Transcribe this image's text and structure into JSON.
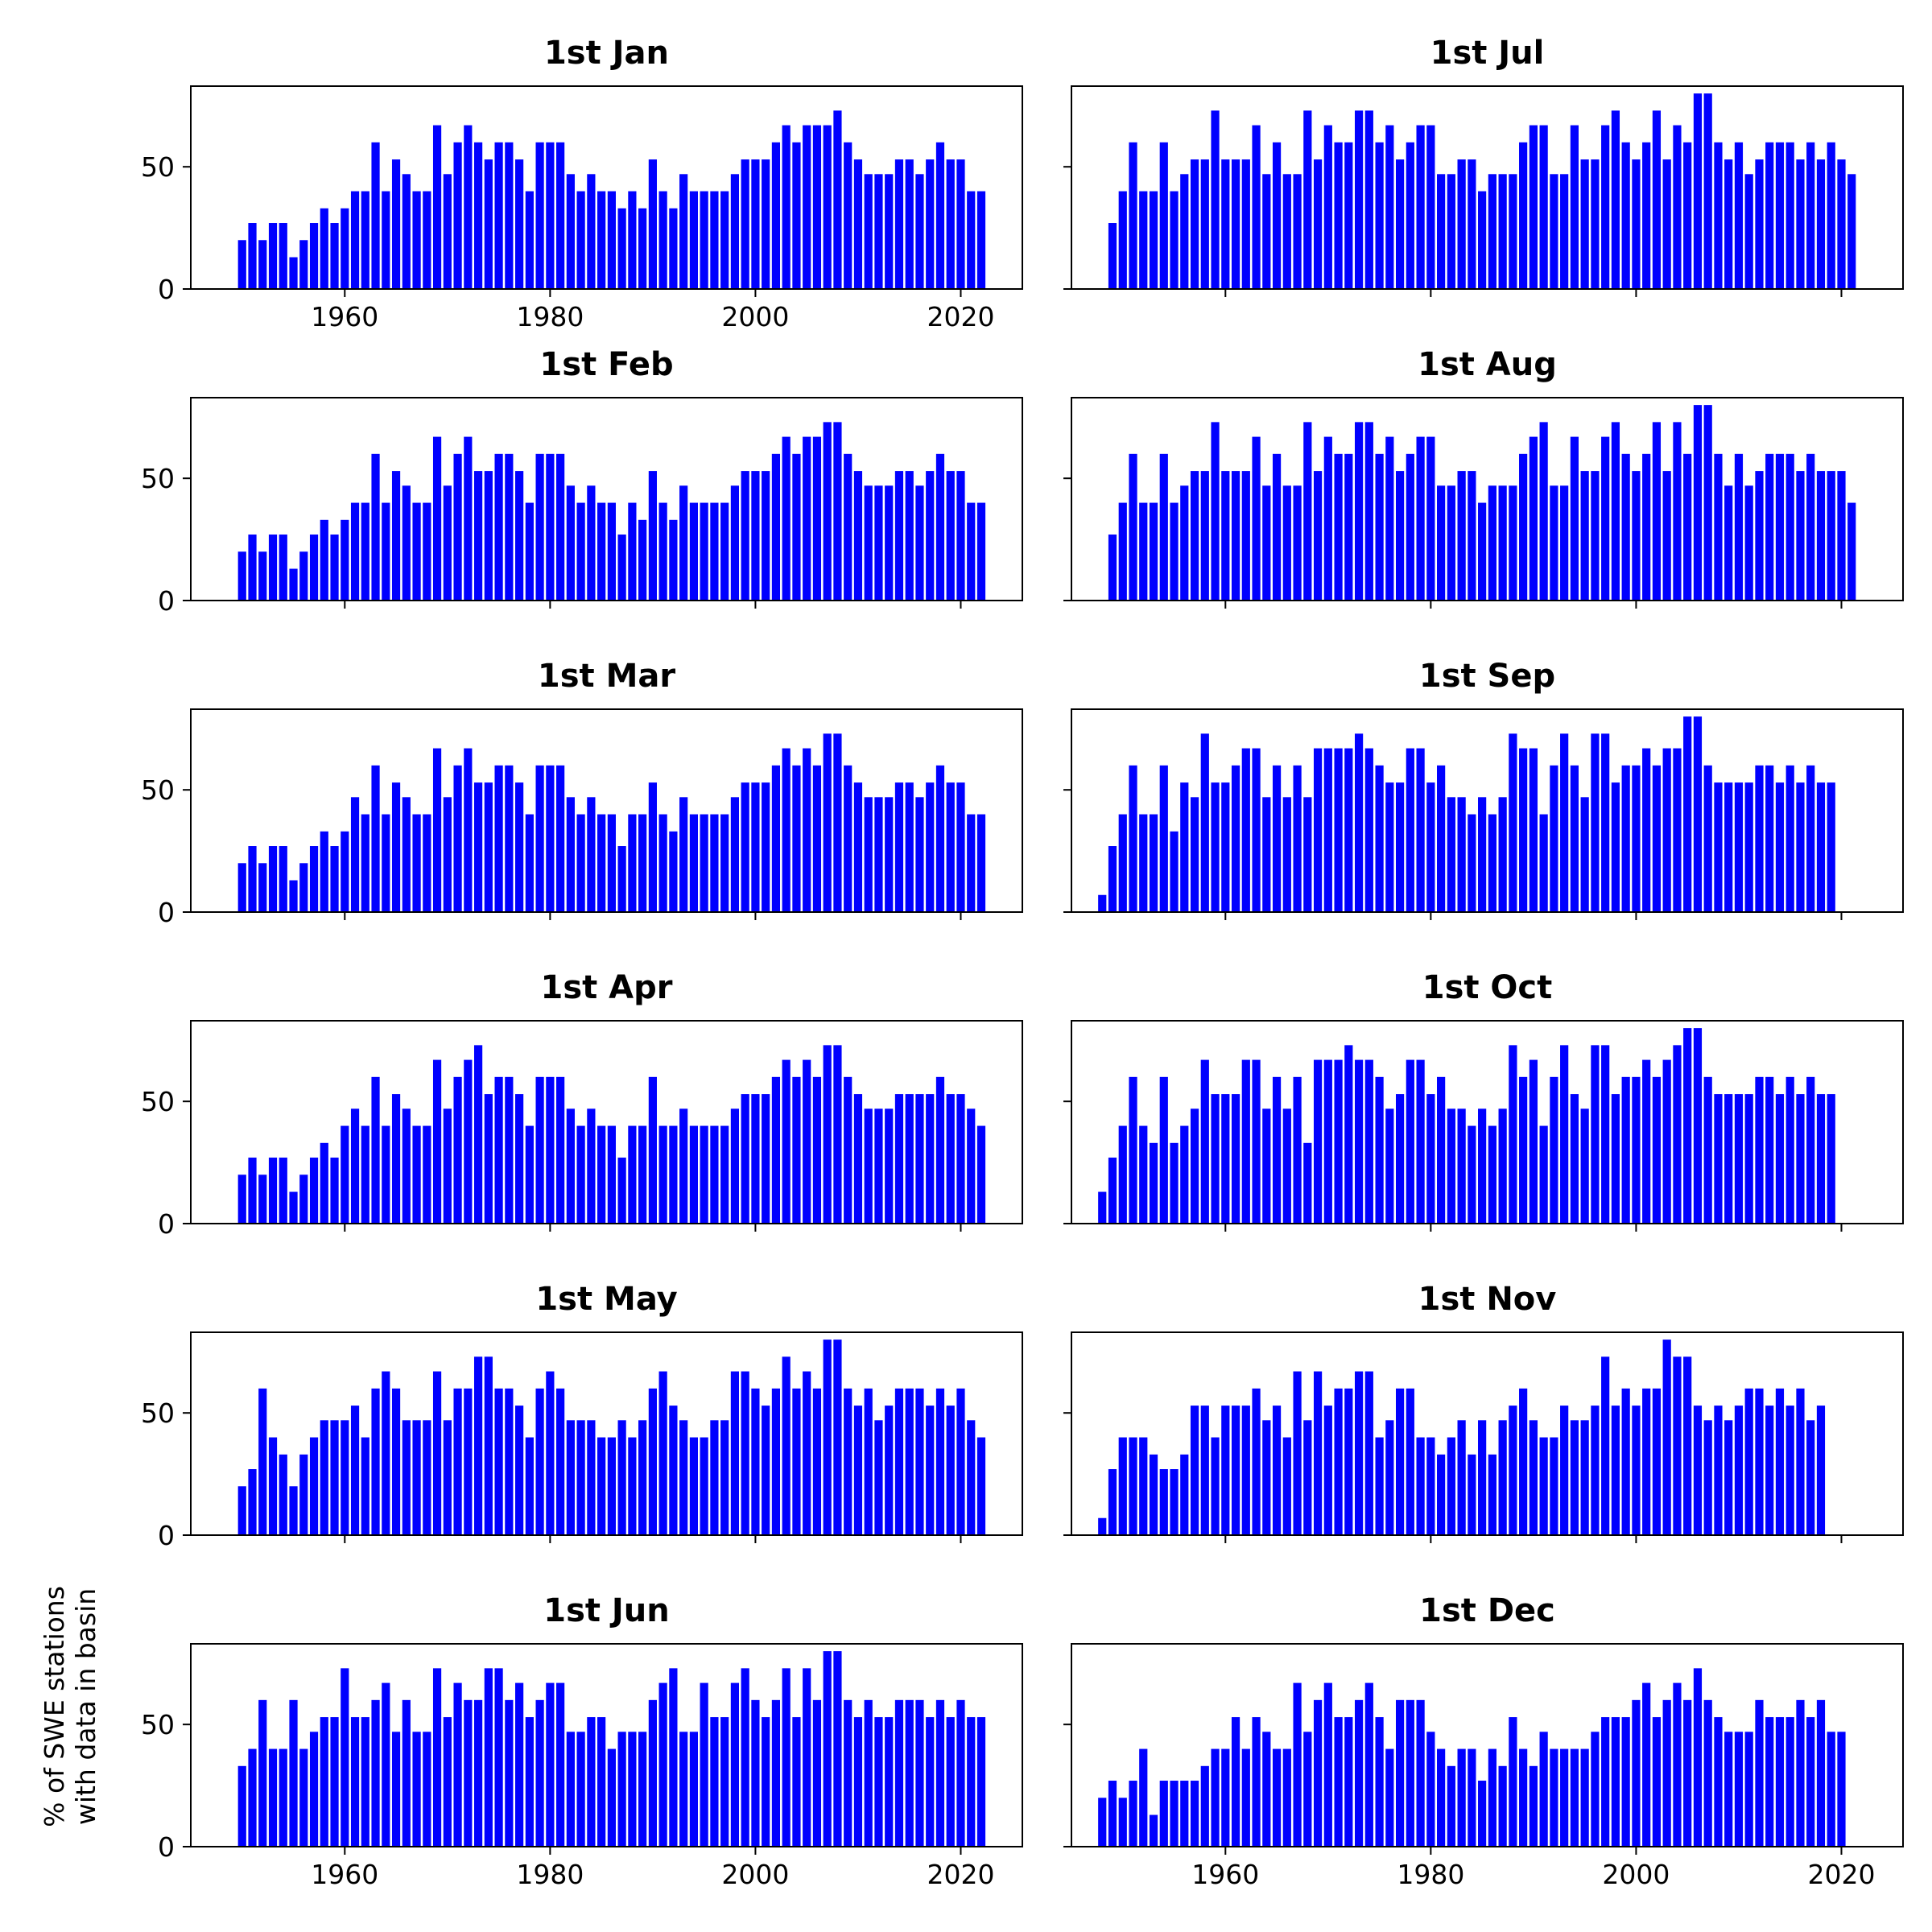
{
  "figure": {
    "ylabel_line1": "% of SWE stations",
    "ylabel_line2": "with data in basin"
  },
  "chart_data": [
    {
      "type": "bar",
      "title": "1st Jan",
      "x_start": 1950,
      "values": [
        20,
        27,
        20,
        27,
        27,
        13,
        20,
        27,
        33,
        27,
        33,
        40,
        40,
        60,
        40,
        53,
        47,
        40,
        40,
        67,
        47,
        60,
        67,
        60,
        53,
        60,
        60,
        53,
        40,
        60,
        60,
        60,
        47,
        40,
        47,
        40,
        40,
        33,
        40,
        33,
        53,
        40,
        33,
        47,
        40,
        40,
        40,
        40,
        47,
        53,
        53,
        53,
        60,
        67,
        60,
        67,
        67,
        67,
        73,
        60,
        53,
        47,
        47,
        47,
        53,
        53,
        47,
        53,
        60,
        53,
        53,
        40,
        40
      ],
      "ylim": [
        0,
        83
      ],
      "yticks": [
        "0",
        "50"
      ],
      "xlim": [
        1945,
        2026
      ],
      "xticks": [
        "1960",
        "1980",
        "2000",
        "2020"
      ],
      "color": "#0000ff"
    },
    {
      "type": "bar",
      "title": "1st Jul",
      "x_start": 1949,
      "values": [
        27,
        40,
        60,
        40,
        40,
        60,
        40,
        47,
        53,
        53,
        73,
        53,
        53,
        53,
        67,
        47,
        60,
        47,
        47,
        73,
        53,
        67,
        60,
        60,
        73,
        73,
        60,
        67,
        53,
        60,
        67,
        67,
        47,
        47,
        53,
        53,
        40,
        47,
        47,
        47,
        60,
        67,
        67,
        47,
        47,
        67,
        53,
        53,
        67,
        73,
        60,
        53,
        60,
        73,
        53,
        67,
        60,
        80,
        80,
        60,
        53,
        60,
        47,
        53,
        60,
        60,
        60,
        53,
        60,
        53,
        60,
        53,
        47
      ],
      "ylim": [
        0,
        83
      ],
      "yticks": [
        "",
        ""
      ],
      "xlim": [
        1945,
        2026
      ],
      "xticks": [
        "",
        "",
        "",
        ""
      ],
      "color": "#0000ff"
    },
    {
      "type": "bar",
      "title": "1st Feb",
      "x_start": 1950,
      "values": [
        20,
        27,
        20,
        27,
        27,
        13,
        20,
        27,
        33,
        27,
        33,
        40,
        40,
        60,
        40,
        53,
        47,
        40,
        40,
        67,
        47,
        60,
        67,
        53,
        53,
        60,
        60,
        53,
        40,
        60,
        60,
        60,
        47,
        40,
        47,
        40,
        40,
        27,
        40,
        33,
        53,
        40,
        33,
        47,
        40,
        40,
        40,
        40,
        47,
        53,
        53,
        53,
        60,
        67,
        60,
        67,
        67,
        73,
        73,
        60,
        53,
        47,
        47,
        47,
        53,
        53,
        47,
        53,
        60,
        53,
        53,
        40,
        40
      ],
      "ylim": [
        0,
        83
      ],
      "yticks": [
        "0",
        "50"
      ],
      "xlim": [
        1945,
        2026
      ],
      "xticks": [
        "",
        "",
        "",
        ""
      ],
      "color": "#0000ff"
    },
    {
      "type": "bar",
      "title": "1st Aug",
      "x_start": 1949,
      "values": [
        27,
        40,
        60,
        40,
        40,
        60,
        40,
        47,
        53,
        53,
        73,
        53,
        53,
        53,
        67,
        47,
        60,
        47,
        47,
        73,
        53,
        67,
        60,
        60,
        73,
        73,
        60,
        67,
        53,
        60,
        67,
        67,
        47,
        47,
        53,
        53,
        40,
        47,
        47,
        47,
        60,
        67,
        73,
        47,
        47,
        67,
        53,
        53,
        67,
        73,
        60,
        53,
        60,
        73,
        53,
        73,
        60,
        80,
        80,
        60,
        47,
        60,
        47,
        53,
        60,
        60,
        60,
        53,
        60,
        53,
        53,
        53,
        40
      ],
      "ylim": [
        0,
        83
      ],
      "yticks": [
        "",
        ""
      ],
      "xlim": [
        1945,
        2026
      ],
      "xticks": [
        "",
        "",
        "",
        ""
      ],
      "color": "#0000ff"
    },
    {
      "type": "bar",
      "title": "1st Mar",
      "x_start": 1950,
      "values": [
        20,
        27,
        20,
        27,
        27,
        13,
        20,
        27,
        33,
        27,
        33,
        47,
        40,
        60,
        40,
        53,
        47,
        40,
        40,
        67,
        47,
        60,
        67,
        53,
        53,
        60,
        60,
        53,
        40,
        60,
        60,
        60,
        47,
        40,
        47,
        40,
        40,
        27,
        40,
        40,
        53,
        40,
        33,
        47,
        40,
        40,
        40,
        40,
        47,
        53,
        53,
        53,
        60,
        67,
        60,
        67,
        60,
        73,
        73,
        60,
        53,
        47,
        47,
        47,
        53,
        53,
        47,
        53,
        60,
        53,
        53,
        40,
        40
      ],
      "ylim": [
        0,
        83
      ],
      "yticks": [
        "0",
        "50"
      ],
      "xlim": [
        1945,
        2026
      ],
      "xticks": [
        "",
        "",
        "",
        ""
      ],
      "color": "#0000ff"
    },
    {
      "type": "bar",
      "title": "1st Sep",
      "x_start": 1948,
      "values": [
        7,
        27,
        40,
        60,
        40,
        40,
        60,
        33,
        53,
        47,
        73,
        53,
        53,
        60,
        67,
        67,
        47,
        60,
        47,
        60,
        47,
        67,
        67,
        67,
        67,
        73,
        67,
        60,
        53,
        53,
        67,
        67,
        53,
        60,
        47,
        47,
        40,
        47,
        40,
        47,
        73,
        67,
        67,
        40,
        60,
        73,
        60,
        47,
        73,
        73,
        53,
        60,
        60,
        67,
        60,
        67,
        67,
        80,
        80,
        60,
        53,
        53,
        53,
        53,
        60,
        60,
        53,
        60,
        53,
        60,
        53,
        53
      ],
      "ylim": [
        0,
        83
      ],
      "yticks": [
        "",
        ""
      ],
      "xlim": [
        1945,
        2026
      ],
      "xticks": [
        "",
        "",
        "",
        ""
      ],
      "color": "#0000ff"
    },
    {
      "type": "bar",
      "title": "1st Apr",
      "x_start": 1950,
      "values": [
        20,
        27,
        20,
        27,
        27,
        13,
        20,
        27,
        33,
        27,
        40,
        47,
        40,
        60,
        40,
        53,
        47,
        40,
        40,
        67,
        47,
        60,
        67,
        73,
        53,
        60,
        60,
        53,
        40,
        60,
        60,
        60,
        47,
        40,
        47,
        40,
        40,
        27,
        40,
        40,
        60,
        40,
        40,
        47,
        40,
        40,
        40,
        40,
        47,
        53,
        53,
        53,
        60,
        67,
        60,
        67,
        60,
        73,
        73,
        60,
        53,
        47,
        47,
        47,
        53,
        53,
        53,
        53,
        60,
        53,
        53,
        47,
        40
      ],
      "ylim": [
        0,
        83
      ],
      "yticks": [
        "0",
        "50"
      ],
      "xlim": [
        1945,
        2026
      ],
      "xticks": [
        "",
        "",
        "",
        ""
      ],
      "color": "#0000ff"
    },
    {
      "type": "bar",
      "title": "1st Oct",
      "x_start": 1948,
      "values": [
        13,
        27,
        40,
        60,
        40,
        33,
        60,
        33,
        40,
        47,
        67,
        53,
        53,
        53,
        67,
        67,
        47,
        60,
        47,
        60,
        33,
        67,
        67,
        67,
        73,
        67,
        67,
        60,
        47,
        53,
        67,
        67,
        53,
        60,
        47,
        47,
        40,
        47,
        40,
        47,
        73,
        60,
        67,
        40,
        60,
        73,
        53,
        47,
        73,
        73,
        53,
        60,
        60,
        67,
        60,
        67,
        73,
        80,
        80,
        60,
        53,
        53,
        53,
        53,
        60,
        60,
        53,
        60,
        53,
        60,
        53,
        53
      ],
      "ylim": [
        0,
        83
      ],
      "yticks": [
        "",
        ""
      ],
      "xlim": [
        1945,
        2026
      ],
      "xticks": [
        "",
        "",
        "",
        ""
      ],
      "color": "#0000ff"
    },
    {
      "type": "bar",
      "title": "1st May",
      "x_start": 1950,
      "values": [
        20,
        27,
        60,
        40,
        33,
        20,
        33,
        40,
        47,
        47,
        47,
        53,
        40,
        60,
        67,
        60,
        47,
        47,
        47,
        67,
        47,
        60,
        60,
        73,
        73,
        60,
        60,
        53,
        40,
        60,
        67,
        60,
        47,
        47,
        47,
        40,
        40,
        47,
        40,
        47,
        60,
        67,
        53,
        47,
        40,
        40,
        47,
        47,
        67,
        67,
        60,
        53,
        60,
        73,
        60,
        67,
        60,
        80,
        80,
        60,
        53,
        60,
        47,
        53,
        60,
        60,
        60,
        53,
        60,
        53,
        60,
        47,
        40
      ],
      "ylim": [
        0,
        83
      ],
      "yticks": [
        "0",
        "50"
      ],
      "xlim": [
        1945,
        2026
      ],
      "xticks": [
        "",
        "",
        "",
        ""
      ],
      "color": "#0000ff"
    },
    {
      "type": "bar",
      "title": "1st Nov",
      "x_start": 1948,
      "values": [
        7,
        27,
        40,
        40,
        40,
        33,
        27,
        27,
        33,
        53,
        53,
        40,
        53,
        53,
        53,
        60,
        47,
        53,
        40,
        67,
        47,
        67,
        53,
        60,
        60,
        67,
        67,
        40,
        47,
        60,
        60,
        40,
        40,
        33,
        40,
        47,
        33,
        47,
        33,
        47,
        53,
        60,
        47,
        40,
        40,
        53,
        47,
        47,
        53,
        73,
        53,
        60,
        53,
        60,
        60,
        80,
        73,
        73,
        53,
        47,
        53,
        47,
        53,
        60,
        60,
        53,
        60,
        53,
        60,
        47,
        53
      ],
      "ylim": [
        0,
        83
      ],
      "yticks": [
        "",
        ""
      ],
      "xlim": [
        1945,
        2026
      ],
      "xticks": [
        "",
        "",
        "",
        ""
      ],
      "color": "#0000ff"
    },
    {
      "type": "bar",
      "title": "1st Jun",
      "x_start": 1950,
      "values": [
        33,
        40,
        60,
        40,
        40,
        60,
        40,
        47,
        53,
        53,
        73,
        53,
        53,
        60,
        67,
        47,
        60,
        47,
        47,
        73,
        53,
        67,
        60,
        60,
        73,
        73,
        60,
        67,
        53,
        60,
        67,
        67,
        47,
        47,
        53,
        53,
        40,
        47,
        47,
        47,
        60,
        67,
        73,
        47,
        47,
        67,
        53,
        53,
        67,
        73,
        60,
        53,
        60,
        73,
        53,
        73,
        60,
        80,
        80,
        60,
        53,
        60,
        53,
        53,
        60,
        60,
        60,
        53,
        60,
        53,
        60,
        53,
        53
      ],
      "ylim": [
        0,
        83
      ],
      "yticks": [
        "0",
        "50"
      ],
      "xlim": [
        1945,
        2026
      ],
      "xticks": [
        "1960",
        "1980",
        "2000",
        "2020"
      ],
      "color": "#0000ff"
    },
    {
      "type": "bar",
      "title": "1st Dec",
      "x_start": 1948,
      "values": [
        20,
        27,
        20,
        27,
        40,
        13,
        27,
        27,
        27,
        27,
        33,
        40,
        40,
        53,
        40,
        53,
        47,
        40,
        40,
        67,
        47,
        60,
        67,
        53,
        53,
        60,
        67,
        53,
        40,
        60,
        60,
        60,
        47,
        40,
        33,
        40,
        40,
        27,
        40,
        33,
        53,
        40,
        33,
        47,
        40,
        40,
        40,
        40,
        47,
        53,
        53,
        53,
        60,
        67,
        53,
        60,
        67,
        60,
        73,
        60,
        53,
        47,
        47,
        47,
        60,
        53,
        53,
        53,
        60,
        53,
        60,
        47,
        47
      ],
      "ylim": [
        0,
        83
      ],
      "yticks": [
        "",
        ""
      ],
      "xlim": [
        1945,
        2026
      ],
      "xticks": [
        "1960",
        "1980",
        "2000",
        "2020"
      ],
      "color": "#0000ff"
    }
  ]
}
